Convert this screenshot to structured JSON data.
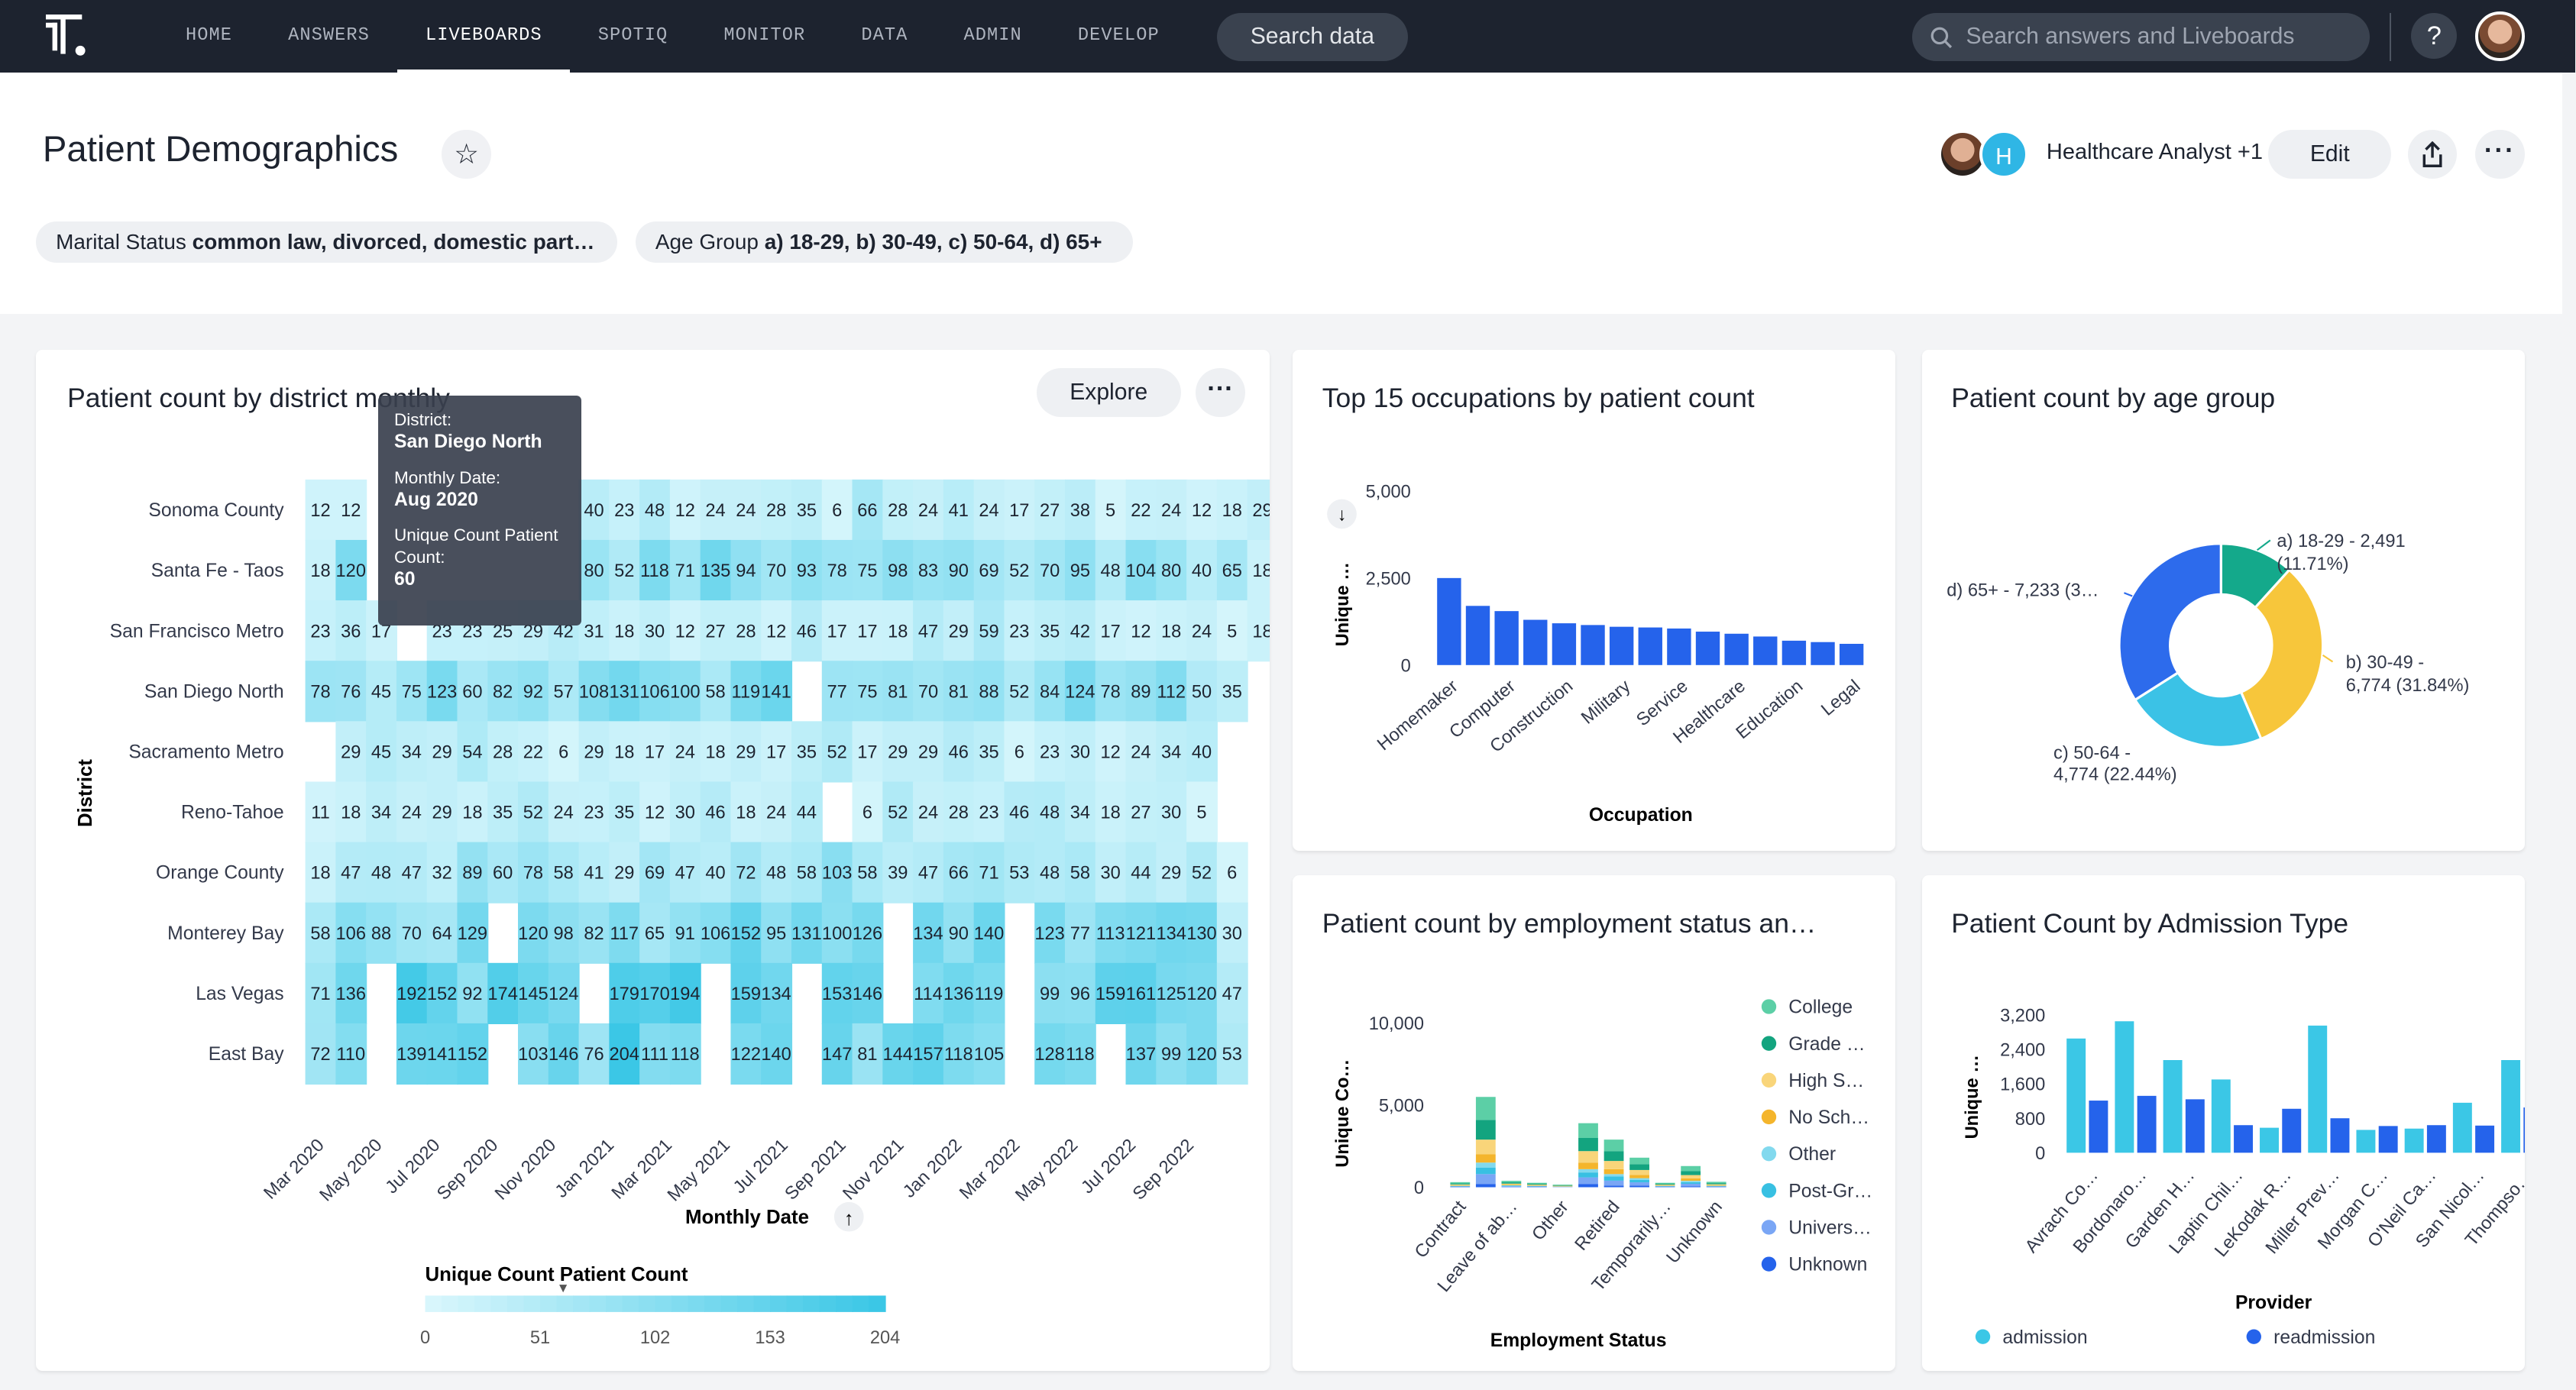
{
  "nav": {
    "items": [
      "HOME",
      "ANSWERS",
      "LIVEBOARDS",
      "SPOTIQ",
      "MONITOR",
      "DATA",
      "ADMIN",
      "DEVELOP"
    ],
    "active_index": 2,
    "search_data_label": "Search data",
    "search_placeholder": "Search answers and Liveboards",
    "help_label": "?"
  },
  "header": {
    "title": "Patient Demographics",
    "shared_with": "Healthcare Analyst +1",
    "shared_avatar_letter": "H",
    "edit_label": "Edit",
    "filters": [
      {
        "name": "Marital Status",
        "value": "common law, divorced, domestic part…"
      },
      {
        "name": "Age Group",
        "value": "a) 18-29, b) 30-49, c) 50-64, d) 65+"
      }
    ]
  },
  "colors": {
    "topbar": "#1d232f",
    "bar_blue": "#2563eb",
    "heat_low": "#d8f6fc",
    "heat_high": "#3bc7e6",
    "accent_teal": "#1ab89a"
  },
  "heatmap": {
    "title": "Patient count by district monthly",
    "explore_label": "Explore",
    "tooltip": {
      "district_label": "District:",
      "district_value": "San Diego North",
      "date_label": "Monthly Date:",
      "date_value": "Aug 2020",
      "count_label": "Unique Count Patient Count:",
      "count_value": "60"
    },
    "legend_title": "Unique Count Patient Count",
    "legend_ticks": [
      "0",
      "51",
      "102",
      "153",
      "204"
    ],
    "ylabel": "District",
    "xlabel": "Monthly Date"
  },
  "chart_data": [
    {
      "type": "heatmap",
      "title": "Patient count by district monthly",
      "xlabel": "Monthly Date",
      "ylabel": "District",
      "x_tick_labels": [
        "Mar 2020",
        "May 2020",
        "Jul 2020",
        "Sep 2020",
        "Nov 2020",
        "Jan 2021",
        "Mar 2021",
        "May 2021",
        "Jul 2021",
        "Sep 2021",
        "Nov 2021",
        "Jan 2022",
        "Mar 2022",
        "May 2022",
        "Jul 2022",
        "Sep 2022"
      ],
      "rows": [
        "Sonoma County",
        "Santa Fe - Taos",
        "San Francisco Metro",
        "San Diego North",
        "Sacramento Metro",
        "Reno-Tahoe",
        "Orange County",
        "Monterey Bay",
        "Las Vegas",
        "East Bay"
      ],
      "cells": [
        [
          12,
          12,
          null,
          null,
          null,
          null,
          null,
          null,
          null,
          40,
          23,
          48,
          12,
          24,
          24,
          28,
          35,
          6,
          66,
          28,
          24,
          41,
          24,
          17,
          27,
          38,
          5,
          22,
          24,
          12,
          18,
          29,
          null
        ],
        [
          18,
          120,
          null,
          null,
          null,
          null,
          null,
          null,
          null,
          80,
          52,
          118,
          71,
          135,
          94,
          70,
          93,
          78,
          75,
          98,
          83,
          90,
          69,
          52,
          70,
          95,
          48,
          104,
          80,
          40,
          65,
          18,
          null
        ],
        [
          23,
          36,
          17,
          null,
          23,
          23,
          25,
          29,
          42,
          31,
          18,
          30,
          12,
          27,
          28,
          12,
          46,
          17,
          17,
          18,
          47,
          29,
          59,
          23,
          35,
          42,
          17,
          12,
          18,
          24,
          5,
          18,
          null
        ],
        [
          78,
          76,
          45,
          75,
          123,
          60,
          82,
          92,
          57,
          108,
          131,
          106,
          100,
          58,
          119,
          141,
          null,
          77,
          75,
          81,
          70,
          81,
          88,
          52,
          84,
          124,
          78,
          89,
          112,
          50,
          35,
          null,
          null
        ],
        [
          null,
          29,
          45,
          34,
          29,
          54,
          28,
          22,
          6,
          29,
          18,
          17,
          24,
          18,
          29,
          17,
          35,
          52,
          17,
          29,
          29,
          46,
          35,
          6,
          23,
          30,
          12,
          24,
          34,
          40,
          null,
          null,
          null
        ],
        [
          11,
          18,
          34,
          24,
          29,
          18,
          35,
          52,
          24,
          23,
          35,
          12,
          30,
          46,
          18,
          24,
          44,
          null,
          6,
          52,
          24,
          28,
          23,
          46,
          48,
          34,
          18,
          27,
          30,
          5,
          null,
          null,
          null
        ],
        [
          18,
          47,
          48,
          47,
          32,
          89,
          60,
          78,
          58,
          41,
          29,
          69,
          47,
          40,
          72,
          48,
          58,
          103,
          58,
          39,
          47,
          66,
          71,
          53,
          48,
          58,
          30,
          44,
          29,
          52,
          6,
          null,
          null
        ],
        [
          58,
          106,
          88,
          70,
          64,
          129,
          null,
          120,
          98,
          82,
          117,
          65,
          91,
          106,
          152,
          95,
          131,
          100,
          126,
          null,
          134,
          90,
          140,
          null,
          123,
          77,
          113,
          121,
          134,
          130,
          30,
          null,
          null
        ],
        [
          71,
          136,
          null,
          192,
          152,
          92,
          174,
          145,
          124,
          null,
          179,
          170,
          194,
          null,
          159,
          134,
          null,
          153,
          146,
          null,
          114,
          136,
          119,
          null,
          99,
          96,
          159,
          161,
          125,
          120,
          47,
          null,
          null
        ],
        [
          72,
          110,
          null,
          139,
          141,
          152,
          null,
          103,
          146,
          76,
          204,
          111,
          118,
          null,
          122,
          140,
          null,
          147,
          81,
          144,
          157,
          118,
          105,
          null,
          128,
          118,
          null,
          137,
          99,
          120,
          53,
          null,
          null
        ]
      ],
      "color_scale": {
        "min": 0,
        "max": 204
      }
    },
    {
      "type": "bar",
      "title": "Top 15 occupations by patient count",
      "xlabel": "Occupation",
      "ylabel": "Unique …",
      "ylim": [
        0,
        5000
      ],
      "y_ticks": [
        0,
        2500,
        5000
      ],
      "categories": [
        "Homemaker",
        "",
        "Computer",
        "",
        "Construction",
        "",
        "Military",
        "",
        "Service",
        "",
        "Healthcare",
        "",
        "Education",
        "",
        "Legal"
      ],
      "values": [
        2500,
        1700,
        1550,
        1300,
        1200,
        1150,
        1100,
        1080,
        1050,
        960,
        900,
        820,
        700,
        660,
        610
      ]
    },
    {
      "type": "pie",
      "title": "Patient count by age group",
      "donut": true,
      "slices": [
        {
          "label": "a) 18-29",
          "value": 2491,
          "percent": 11.71,
          "color": "#14a98b"
        },
        {
          "label": "b) 30-49",
          "value": 6774,
          "percent": 31.84,
          "color": "#f7c63b"
        },
        {
          "label": "c) 50-64",
          "value": 4774,
          "percent": 22.44,
          "color": "#3bc2e6"
        },
        {
          "label": "d) 65+",
          "value": 7233,
          "percent": 34.0,
          "color": "#2d6bec"
        }
      ],
      "slice_labels": [
        "a) 18-29 - 2,491 (11.71%)",
        "b) 30-49 - 6,774 (31.84%)",
        "c) 50-64 - 4,774 (22.44%)",
        "d) 65+ - 7,233 (3…"
      ]
    },
    {
      "type": "bar",
      "stacked": true,
      "title": "Patient count by employment status an…",
      "xlabel": "Employment Status",
      "ylabel": "Unique Co…",
      "ylim": [
        0,
        10000
      ],
      "y_ticks": [
        0,
        5000,
        10000
      ],
      "categories": [
        "Contract",
        "",
        "Leave of ab…",
        "",
        "Other",
        "",
        "Retired",
        "",
        "Temporarily…",
        "",
        "Unknown"
      ],
      "series": [
        {
          "name": "College",
          "color": "#5ccfa6",
          "values": [
            80,
            1400,
            90,
            60,
            40,
            900,
            700,
            400,
            60,
            300,
            80
          ]
        },
        {
          "name": "Grade …",
          "color": "#13a47f",
          "values": [
            60,
            1200,
            80,
            50,
            30,
            800,
            600,
            350,
            50,
            250,
            70
          ]
        },
        {
          "name": "High S…",
          "color": "#f9d57a",
          "values": [
            50,
            900,
            60,
            40,
            20,
            700,
            500,
            300,
            40,
            200,
            50
          ]
        },
        {
          "name": "No Sch…",
          "color": "#f4b52c",
          "values": [
            30,
            500,
            40,
            30,
            20,
            400,
            300,
            200,
            30,
            150,
            40
          ]
        },
        {
          "name": "Other",
          "color": "#82d9ee",
          "values": [
            20,
            300,
            30,
            20,
            10,
            200,
            150,
            100,
            20,
            80,
            20
          ]
        },
        {
          "name": "Post-Gr…",
          "color": "#38c0e2",
          "values": [
            20,
            400,
            30,
            20,
            10,
            300,
            250,
            150,
            20,
            100,
            20
          ]
        },
        {
          "name": "Univers…",
          "color": "#7aa6f5",
          "values": [
            30,
            600,
            40,
            30,
            20,
            400,
            300,
            200,
            30,
            150,
            30
          ]
        },
        {
          "name": "Unknown",
          "color": "#2563eb",
          "values": [
            20,
            200,
            20,
            20,
            10,
            200,
            100,
            100,
            20,
            60,
            20
          ]
        }
      ]
    },
    {
      "type": "bar",
      "title": "Patient Count by Admission Type",
      "xlabel": "Provider",
      "ylabel": "Unique …",
      "ylim": [
        0,
        3200
      ],
      "y_ticks": [
        0,
        800,
        1600,
        2400,
        3200
      ],
      "categories": [
        "Avrach Co…",
        "Bordonaro…",
        "Garden H…",
        "Laptin Chil…",
        "LeKodak R…",
        "Miller Prev…",
        "Morgan C…",
        "O'Neil Ca…",
        "San Nicol…",
        "Thompso…"
      ],
      "series": [
        {
          "name": "admission",
          "color": "#3bc7e6",
          "values": [
            2650,
            3050,
            2150,
            1700,
            580,
            2950,
            530,
            560,
            1160,
            2150
          ]
        },
        {
          "name": "readmission",
          "color": "#2563eb",
          "values": [
            1210,
            1320,
            1240,
            640,
            1020,
            800,
            620,
            640,
            630,
            1050
          ]
        }
      ]
    }
  ]
}
